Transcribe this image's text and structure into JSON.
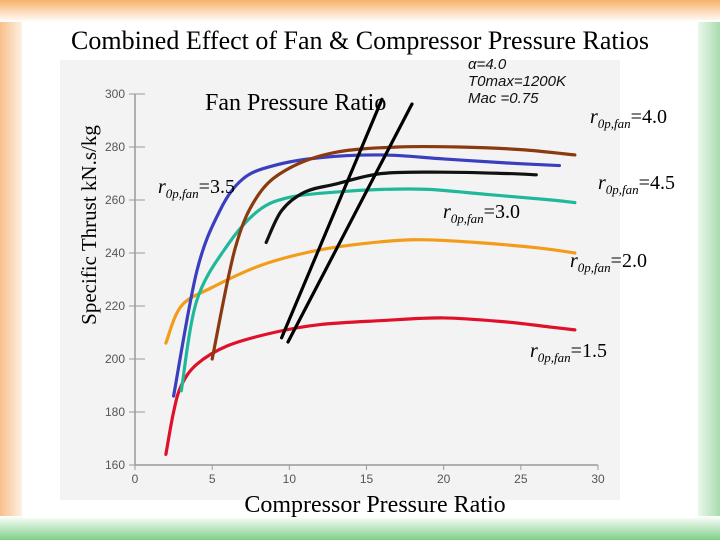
{
  "slide": {
    "title": "Combined Effect of Fan & Compressor Pressure Ratios",
    "colors": {
      "background": "#ffffff",
      "border_left": "#f7c08a",
      "border_right": "#a8dcae",
      "plot_background": "#f3f3f3"
    }
  },
  "chart_data": {
    "type": "line",
    "title": "Combined Effect of Fan & Compressor Pressure Ratios",
    "xlabel": "Compressor Pressure Ratio",
    "ylabel": "Specific Thrust kN.s/kg",
    "legend_title": "Fan Pressure Ratio",
    "parameters": [
      "α=4.0",
      "T0max=1200K",
      "Mac =0.75"
    ],
    "xlim": [
      0,
      30
    ],
    "ylim": [
      160,
      300
    ],
    "x_ticks": [
      0,
      5,
      10,
      15,
      20,
      25,
      30
    ],
    "y_ticks": [
      160,
      180,
      200,
      220,
      240,
      260,
      280,
      300
    ],
    "grid": false,
    "series": [
      {
        "name": "r0p,fan=1.5",
        "color": "#e0102a",
        "points": [
          [
            2,
            164
          ],
          [
            2.5,
            180
          ],
          [
            3,
            190
          ],
          [
            4,
            198
          ],
          [
            6,
            205
          ],
          [
            9,
            210
          ],
          [
            12,
            213
          ],
          [
            16,
            214.5
          ],
          [
            20,
            215.5
          ],
          [
            24,
            214
          ],
          [
            27,
            212
          ],
          [
            28.5,
            211
          ]
        ]
      },
      {
        "name": "r0p,fan=2.0",
        "color": "#f39c1a",
        "points": [
          [
            2,
            206
          ],
          [
            3,
            220
          ],
          [
            5,
            227
          ],
          [
            8,
            235
          ],
          [
            11,
            240
          ],
          [
            14,
            243
          ],
          [
            18,
            245
          ],
          [
            22,
            244
          ],
          [
            26,
            242
          ],
          [
            28.5,
            240
          ]
        ]
      },
      {
        "name": "r0p,fan=3.0",
        "color": "#20b89a",
        "points": [
          [
            3,
            188
          ],
          [
            4,
            222
          ],
          [
            6,
            243
          ],
          [
            8,
            256
          ],
          [
            10,
            261
          ],
          [
            13,
            263
          ],
          [
            16,
            264
          ],
          [
            19,
            264
          ],
          [
            23,
            262
          ],
          [
            27,
            260
          ],
          [
            28.5,
            259
          ]
        ]
      },
      {
        "name": "r0p,fan=3.5",
        "color": "#3a3fbf",
        "points": [
          [
            2.5,
            186
          ],
          [
            4,
            233
          ],
          [
            5.5,
            256
          ],
          [
            7,
            268
          ],
          [
            9,
            273
          ],
          [
            12,
            276
          ],
          [
            16,
            277
          ],
          [
            20,
            275.5
          ],
          [
            24,
            274
          ],
          [
            27.5,
            273
          ]
        ]
      },
      {
        "name": "r0p,fan=4.0",
        "color": "#8b3a10",
        "points": [
          [
            5,
            200
          ],
          [
            6.5,
            242
          ],
          [
            8,
            262
          ],
          [
            10,
            272
          ],
          [
            13,
            278
          ],
          [
            17,
            280
          ],
          [
            21,
            280
          ],
          [
            25,
            279
          ],
          [
            28.5,
            277
          ]
        ]
      },
      {
        "name": "r0p,fan=4.5",
        "color": "#111111",
        "points": [
          [
            8.5,
            244
          ],
          [
            9.5,
            256
          ],
          [
            11,
            263
          ],
          [
            13,
            266
          ],
          [
            16,
            270
          ],
          [
            20,
            270.5
          ],
          [
            24,
            270
          ],
          [
            26,
            269.5
          ]
        ]
      }
    ],
    "annotations": [
      {
        "text": "Fan Pressure Ratio trend line",
        "type": "line",
        "from": [
          9.5,
          208
        ],
        "to": [
          16,
          298
        ]
      }
    ],
    "curve_labels": [
      {
        "series": "r0p,fan=3.5",
        "prefix": "r",
        "sub": "0p,fan",
        "value": "=3.5"
      },
      {
        "series": "r0p,fan=4.0",
        "prefix": "r",
        "sub": "0p,fan",
        "value": "=4.0"
      },
      {
        "series": "r0p,fan=4.5",
        "prefix": "r",
        "sub": "0p,fan",
        "value": "=4.5"
      },
      {
        "series": "r0p,fan=3.0",
        "prefix": "r",
        "sub": "0p,fan",
        "value": "=3.0"
      },
      {
        "series": "r0p,fan=2.0",
        "prefix": "r",
        "sub": "0p,fan",
        "value": "=2.0"
      },
      {
        "series": "r0p,fan=1.5",
        "prefix": "r",
        "sub": "0p,fan",
        "value": "=1.5"
      }
    ]
  }
}
